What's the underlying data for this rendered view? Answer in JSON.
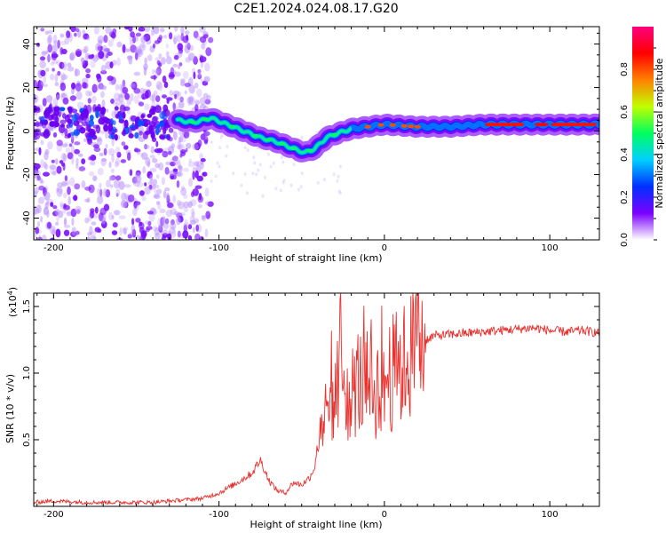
{
  "title": "C2E1.2024.024.08.17.G20",
  "chart_data": [
    {
      "type": "heatmap",
      "xlabel": "Height of straight line (km)",
      "ylabel": "Frequency (Hz)",
      "xlim": [
        -212,
        130
      ],
      "ylim": [
        -50,
        48
      ],
      "xticks": [
        -200,
        -100,
        0,
        100
      ],
      "xtick_labels": [
        "-200",
        "-100",
        "0",
        "100"
      ],
      "yticks": [
        -40,
        -20,
        0,
        20,
        40
      ],
      "ytick_labels": [
        "-40",
        "-20",
        "0",
        "20",
        "40"
      ],
      "grid": false,
      "colorbar": {
        "label": "Normalized spectral amplitude",
        "range": [
          0,
          1
        ],
        "ticks": [
          0,
          0.2,
          0.4,
          0.6,
          0.8
        ],
        "tick_labels": [
          "0.0",
          "0.2",
          "0.4",
          "0.6",
          "0.8"
        ],
        "colors": [
          "#ffffff",
          "#7a00ff",
          "#0030ff",
          "#00d0ff",
          "#00ff60",
          "#c0ff00",
          "#ff8000",
          "#ff0000",
          "#ff0080"
        ]
      },
      "ridge": {
        "x": [
          -125,
          -115,
          -105,
          -95,
          -85,
          -75,
          -65,
          -55,
          -48,
          -42,
          -35,
          -28,
          -20,
          -10,
          0,
          20,
          40,
          60,
          80,
          100,
          130
        ],
        "y": [
          5,
          4,
          6,
          3,
          0,
          -3,
          -5,
          -8,
          -10,
          -8,
          -3,
          -1,
          1,
          2,
          3,
          2,
          2,
          3,
          3,
          3,
          3
        ]
      }
    },
    {
      "type": "line",
      "xlabel": "Height of straight line (km)",
      "ylabel": "SNR (10 * v/v)",
      "yscale_label": "(x10",
      "yscale_exp": "4",
      "yscale_close": ")",
      "xlim": [
        -212,
        130
      ],
      "ylim": [
        0,
        1.6
      ],
      "xticks": [
        -200,
        -100,
        0,
        100
      ],
      "xtick_labels": [
        "-200",
        "-100",
        "0",
        "100"
      ],
      "yticks": [
        0.5,
        1.0,
        1.5
      ],
      "ytick_labels": [
        "0.5",
        "1.0",
        "1.5"
      ],
      "grid": false,
      "line_color": "#e8302c",
      "series": [
        {
          "x": [
            -212,
            -200,
            -180,
            -160,
            -140,
            -120,
            -110,
            -100,
            -90,
            -80,
            -75,
            -70,
            -65,
            -60,
            -55,
            -50,
            -45,
            -42,
            -38,
            -34,
            -30,
            -26,
            -24,
            -20,
            -16,
            -12,
            -8,
            -4,
            0,
            5,
            10,
            15,
            20,
            25,
            30,
            40,
            50,
            60,
            70,
            80,
            90,
            100,
            110,
            120,
            130
          ],
          "y": [
            0.03,
            0.04,
            0.03,
            0.03,
            0.03,
            0.05,
            0.06,
            0.1,
            0.17,
            0.25,
            0.35,
            0.2,
            0.12,
            0.1,
            0.18,
            0.16,
            0.22,
            0.3,
            0.7,
            0.6,
            0.8,
            1.0,
            0.9,
            0.85,
            0.95,
            0.9,
            0.85,
            0.9,
            0.95,
            1.0,
            1.05,
            1.1,
            1.2,
            1.25,
            1.28,
            1.29,
            1.3,
            1.31,
            1.32,
            1.33,
            1.34,
            1.32,
            1.31,
            1.32,
            1.3
          ]
        }
      ]
    }
  ]
}
